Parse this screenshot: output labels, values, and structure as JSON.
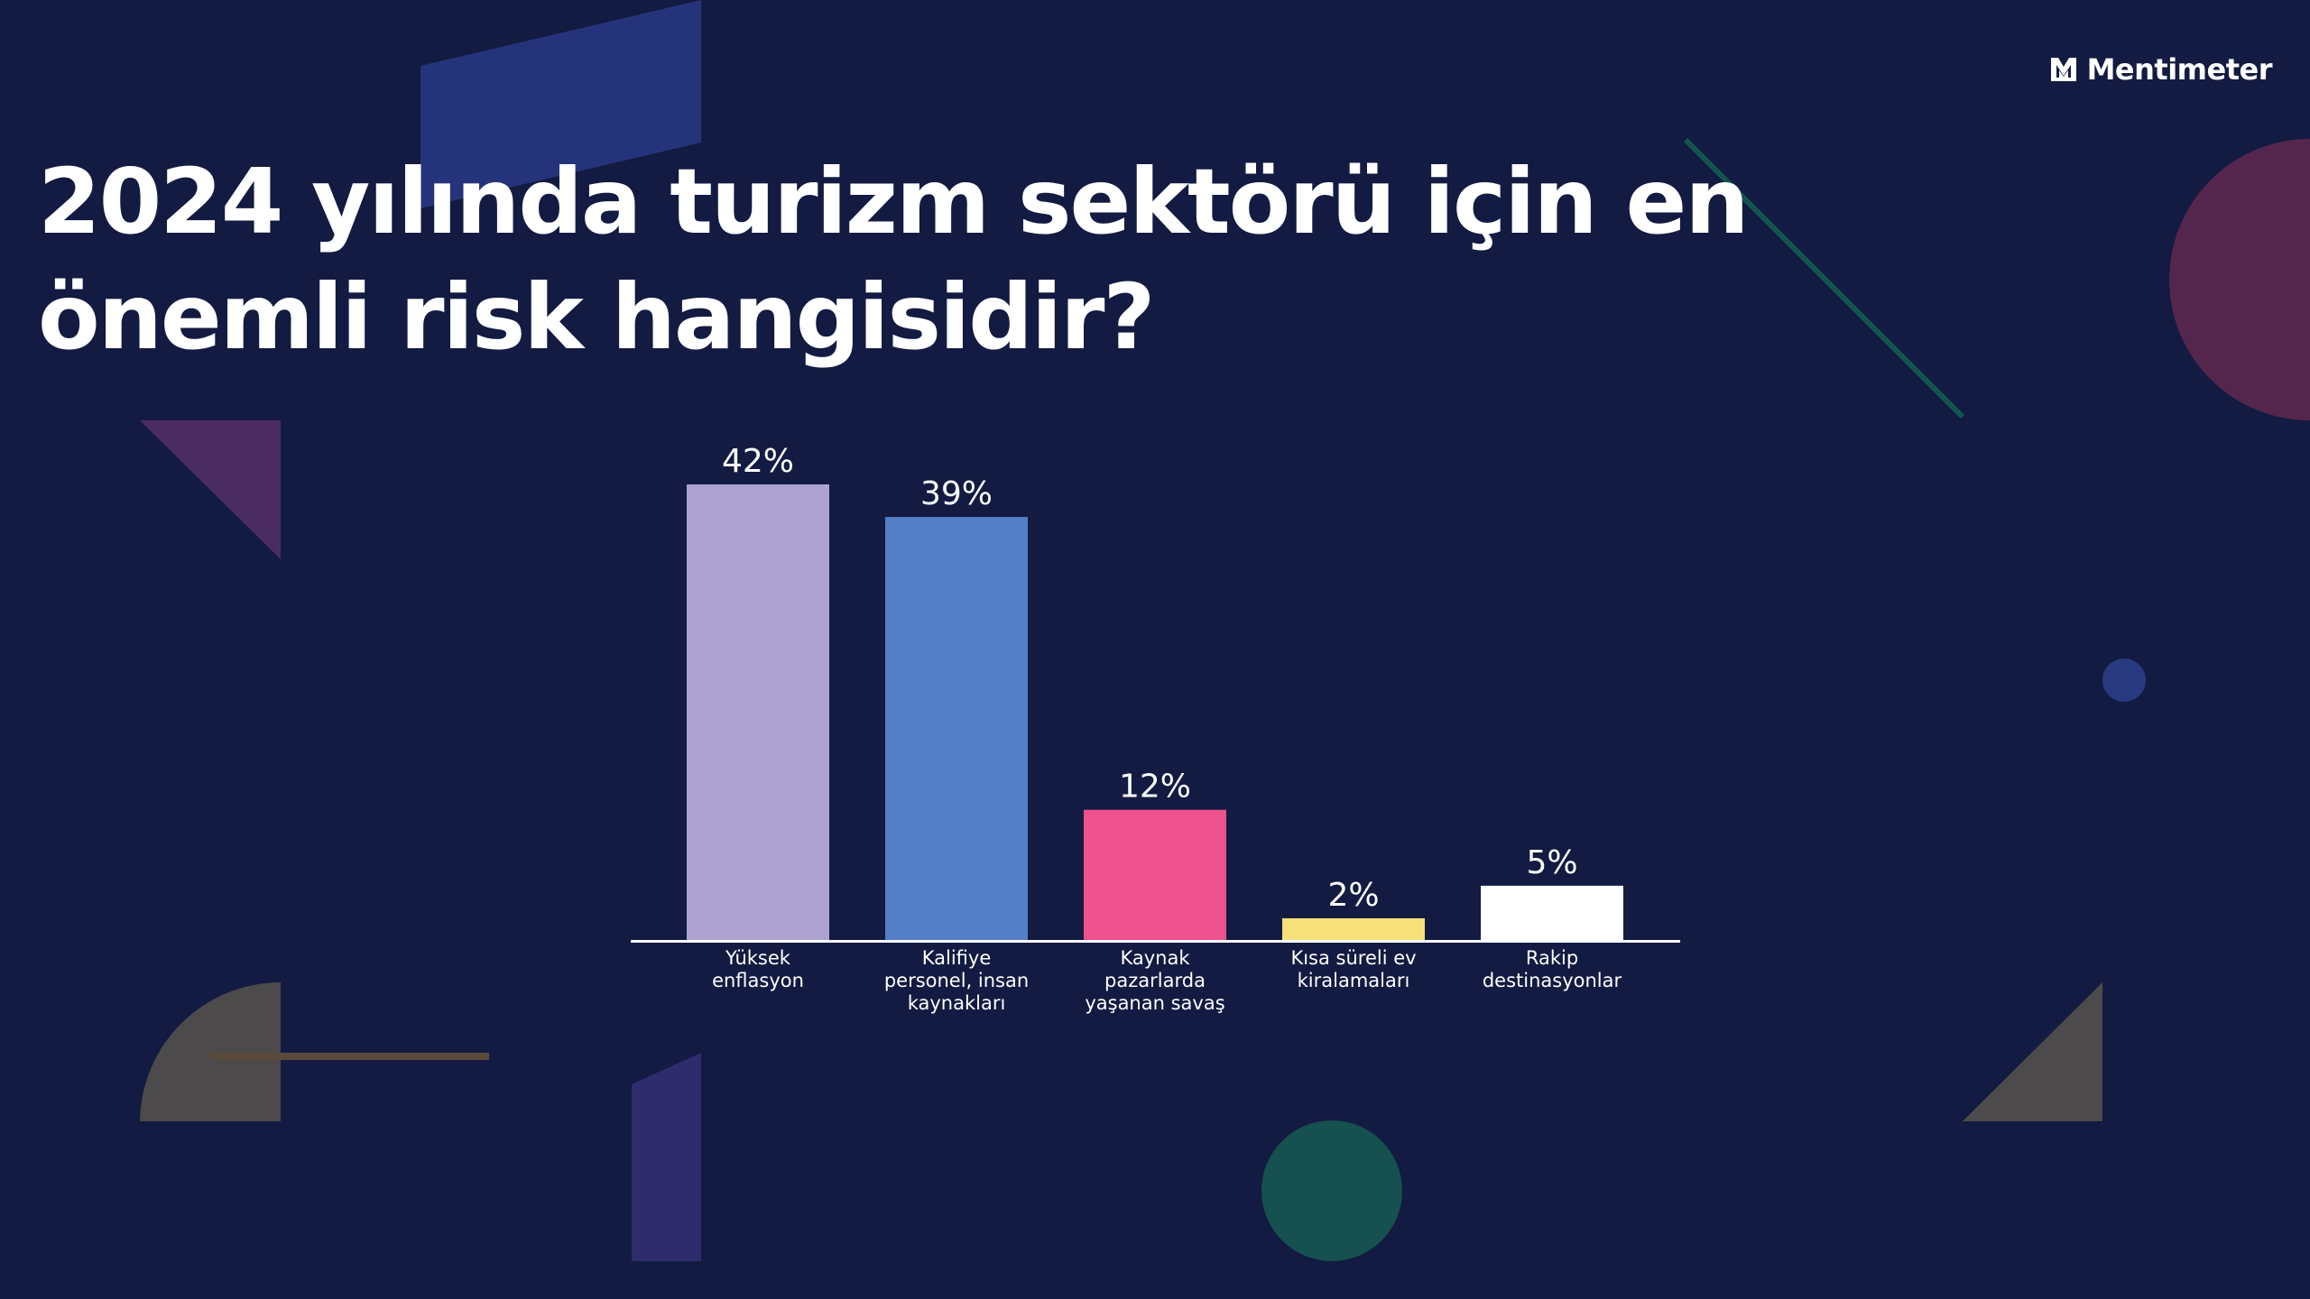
{
  "brand": {
    "name": "Mentimeter"
  },
  "slide": {
    "title": "2024 yılında turizm sektörü için en önemli risk hangisidir?"
  },
  "chart_data": {
    "type": "bar",
    "categories": [
      [
        "Yüksek",
        "enflasyon"
      ],
      [
        "Kalifiye",
        "personel, insan",
        "kaynakları"
      ],
      [
        "Kaynak",
        "pazarlarda",
        "yaşanan savaş"
      ],
      [
        "Kısa süreli ev",
        "kiralamaları"
      ],
      [
        "Rakip",
        "destinasyonlar"
      ]
    ],
    "values": [
      42,
      39,
      12,
      2,
      5
    ],
    "value_labels": [
      "42%",
      "39%",
      "12%",
      "2%",
      "5%"
    ],
    "colors": [
      "#ada3d2",
      "#547ec5",
      "#ee528c",
      "#f7e07a",
      "#ffffff"
    ],
    "ylim": [
      0,
      42
    ],
    "grid": false,
    "legend": "none",
    "background": "#131b42"
  }
}
